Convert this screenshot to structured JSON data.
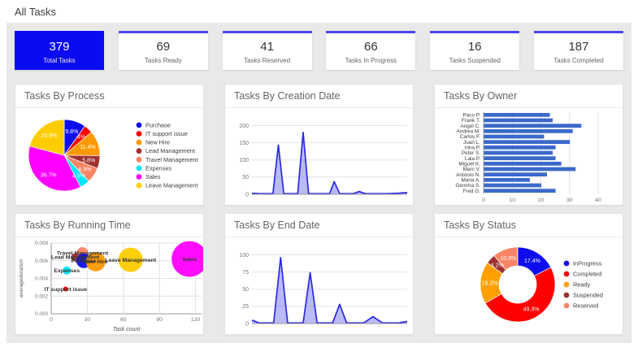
{
  "page": {
    "title": "All Tasks"
  },
  "kpis": [
    {
      "value": "379",
      "label": "Total Tasks",
      "highlight": true
    },
    {
      "value": "69",
      "label": "Tasks Ready"
    },
    {
      "value": "41",
      "label": "Tasks Reserved"
    },
    {
      "value": "66",
      "label": "Tasks In Progress"
    },
    {
      "value": "16",
      "label": "Tasks Suspended"
    },
    {
      "value": "187",
      "label": "Tasks Completed"
    }
  ],
  "panels": [
    {
      "title": "Tasks By Process"
    },
    {
      "title": "Tasks By Creation Date"
    },
    {
      "title": "Tasks By Owner"
    },
    {
      "title": "Tasks By Running Time"
    },
    {
      "title": "Tasks By End Date"
    },
    {
      "title": "Tasks By Status"
    }
  ],
  "colors": {
    "kpi_highlight": "#0b0bf2",
    "kpi_top_border": "#4949f0",
    "bar_blue": "#3b69c9",
    "area_line": "#2a2ae6",
    "background": "#e9e9e9",
    "panel_title": "#666666"
  },
  "chart_data": [
    {
      "type": "pie",
      "title": "Tasks By Process",
      "legend_position": "right",
      "labels": [
        "Purchase",
        "IT support issue",
        "New Hire",
        "Lead Management",
        "Travel Management",
        "Expenses",
        "Sales",
        "Leave Management"
      ],
      "values_pct": [
        9.8,
        4.0,
        11.4,
        5.8,
        6.9,
        4.5,
        36.7,
        20.9
      ],
      "slice_label_texts": [
        "9.8%",
        "4%",
        "11.4%",
        "5.8%",
        "6.9%",
        "4.5%",
        "36.7%",
        "20.9%"
      ],
      "colors": [
        "#0d0df0",
        "#fe0000",
        "#ff9900",
        "#9e3030",
        "#fa8564",
        "#00e6f6",
        "#ff00ff",
        "#ffcc00"
      ]
    },
    {
      "type": "area",
      "title": "Tasks By Creation Date",
      "yticks": [
        0,
        50,
        100,
        150,
        200
      ],
      "ylim": [
        0,
        220
      ],
      "grid": true,
      "line_color": "#2a2ae6",
      "fill_color": "rgba(101,101,235,0.45)",
      "x": [
        0,
        0.05,
        0.1,
        0.135,
        0.17,
        0.205,
        0.25,
        0.295,
        0.33,
        0.365,
        0.41,
        0.46,
        0.5,
        0.53,
        0.565,
        0.61,
        0.655,
        0.69,
        0.73,
        0.8,
        0.87,
        0.94,
        1
      ],
      "values": [
        3,
        2,
        2,
        2,
        143,
        2,
        2,
        2,
        180,
        2,
        2,
        2,
        2,
        37,
        2,
        2,
        2,
        8,
        2,
        2,
        2,
        3,
        5
      ]
    },
    {
      "type": "hbar",
      "title": "Tasks By Owner",
      "categories": [
        "Paco P.",
        "Frank T.",
        "Angel C.",
        "Andrea M.",
        "Carlos F.",
        "Juan L.",
        "Irina P.",
        "Peter S.",
        "Laia P.",
        "Miguel K.",
        "Marc V.",
        "Antonio N.",
        "Maria A.",
        "Gemma S.",
        "Fred G."
      ],
      "values": [
        23,
        24,
        34,
        31,
        21,
        30,
        25,
        24,
        25,
        27,
        32,
        22,
        16,
        20,
        25
      ],
      "xticks": [
        0,
        10,
        20,
        30,
        40
      ],
      "xlim": [
        0,
        44
      ],
      "grid": true,
      "bar_color": "#3b69c9"
    },
    {
      "type": "bubble",
      "title": "Tasks By Running Time",
      "xlabel": "Task count",
      "ylabel": "averageduration",
      "xticks": [
        0,
        30,
        60,
        90,
        120
      ],
      "xlim": [
        0,
        125
      ],
      "ytick_labels": [
        "0.000",
        "0.002",
        "0.004",
        "0.006",
        "0.008"
      ],
      "ylim": [
        0,
        0.008
      ],
      "grid": true,
      "points": [
        {
          "label": "Travel Management",
          "x": 26,
          "y": 0.0069,
          "r": 7,
          "color": "#fa8564"
        },
        {
          "label": "Lead Management",
          "x": 20,
          "y": 0.0064,
          "r": 5,
          "color": "#9e3030"
        },
        {
          "label": "Purchase",
          "x": 27,
          "y": 0.006,
          "r": 9,
          "color": "#0d0df0"
        },
        {
          "label": "New Hire",
          "x": 37,
          "y": 0.0059,
          "r": 12,
          "color": "#ff9900"
        },
        {
          "label": "Leave Management",
          "x": 66,
          "y": 0.0061,
          "r": 15,
          "color": "#ffcc00"
        },
        {
          "label": "Sales",
          "x": 115,
          "y": 0.0062,
          "r": 22,
          "color": "#ff00ff"
        },
        {
          "label": "Expenses",
          "x": 13,
          "y": 0.0049,
          "r": 5,
          "color": "#00e6f6"
        },
        {
          "label": "IT support issue",
          "x": 12,
          "y": 0.0028,
          "r": 3,
          "color": "#fe0000"
        }
      ]
    },
    {
      "type": "area",
      "title": "Tasks By End Date",
      "yticks": [
        0,
        25,
        50,
        75,
        100
      ],
      "ylim": [
        0,
        110
      ],
      "grid": true,
      "line_color": "#2a2ae6",
      "fill_color": "rgba(101,101,235,0.45)",
      "x": [
        0,
        0.045,
        0.09,
        0.14,
        0.185,
        0.23,
        0.285,
        0.33,
        0.375,
        0.42,
        0.47,
        0.52,
        0.565,
        0.61,
        0.665,
        0.72,
        0.78,
        0.84,
        0.89,
        0.945,
        1
      ],
      "values": [
        5,
        1,
        1,
        1,
        96,
        1,
        1,
        1,
        74,
        1,
        1,
        1,
        28,
        1,
        1,
        1,
        10,
        1,
        1,
        1,
        3
      ]
    },
    {
      "type": "donut",
      "title": "Tasks By Status",
      "legend_position": "right",
      "labels": [
        "InProgress",
        "Completed",
        "Ready",
        "Suspended",
        "Reserved"
      ],
      "values_pct": [
        17.4,
        49.3,
        18.2,
        4.2,
        10.8
      ],
      "slice_label_texts": [
        "17.4%",
        "49.3%",
        "18.2%",
        "4.2%",
        "10.8%"
      ],
      "colors": [
        "#0d0df0",
        "#fe0000",
        "#ffa000",
        "#9e3030",
        "#fa8564"
      ]
    }
  ]
}
